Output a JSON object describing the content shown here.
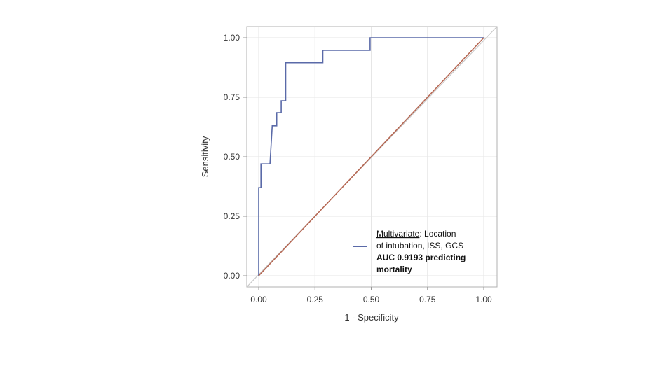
{
  "chart_data": {
    "type": "line",
    "xlabel": "1 - Specificity",
    "ylabel": "Sensitivity",
    "xlim": [
      0,
      1
    ],
    "ylim": [
      0,
      1
    ],
    "x_ticks": [
      "0.00",
      "0.25",
      "0.50",
      "0.75",
      "1.00"
    ],
    "y_ticks": [
      "0.00",
      "0.25",
      "0.50",
      "0.75",
      "1.00"
    ],
    "grid": true,
    "legend_position": "bottom-right",
    "series": [
      {
        "color": "#5a6aa8",
        "style": "step",
        "x": [
          0,
          0,
          0.01,
          0.01,
          0.03,
          0.05,
          0.06,
          0.06,
          0.08,
          0.08,
          0.1,
          0.1,
          0.12,
          0.12,
          0.285,
          0.285,
          0.495,
          0.495,
          1.0
        ],
        "y": [
          0,
          0.37,
          0.37,
          0.47,
          0.47,
          0.47,
          0.63,
          0.63,
          0.63,
          0.685,
          0.685,
          0.735,
          0.735,
          0.895,
          0.895,
          0.947,
          0.947,
          1.0,
          1.0
        ]
      },
      {
        "color": "#b56550",
        "style": "line",
        "x": [
          0,
          1
        ],
        "y": [
          0,
          1
        ]
      }
    ],
    "legend": {
      "line1_underlined": "Multivariate",
      "line1_rest": ": Location",
      "line2": "of intubation, ISS, GCS",
      "line3": "AUC 0.9193 predicting",
      "line4": "mortality"
    }
  }
}
